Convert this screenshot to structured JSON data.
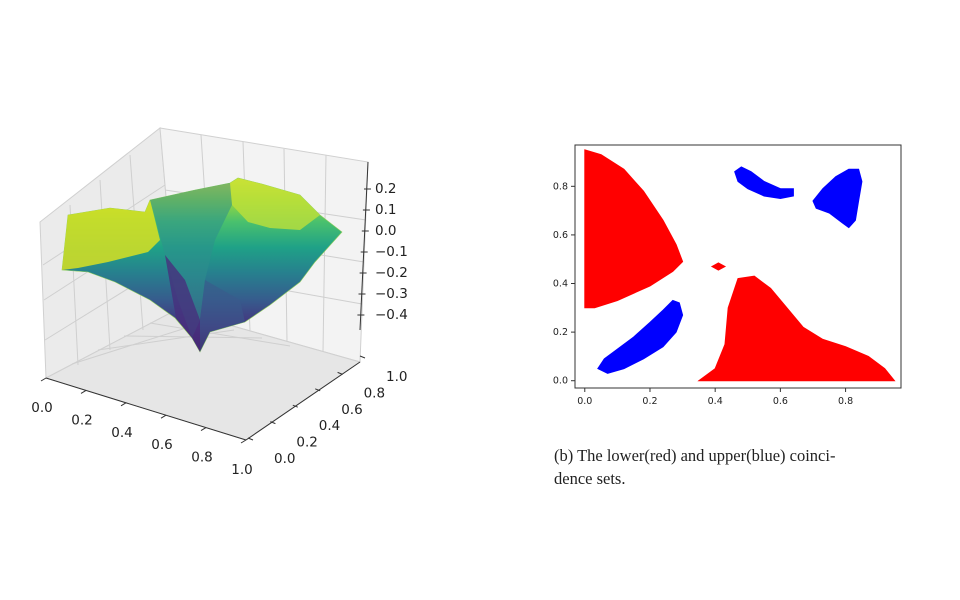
{
  "chart_data": [
    {
      "type": "surface3d",
      "colormap": "viridis",
      "x_ticks": [
        "0.0",
        "0.2",
        "0.4",
        "0.6",
        "0.8",
        "1.0"
      ],
      "y_ticks": [
        "0.0",
        "0.2",
        "0.4",
        "0.6",
        "0.8",
        "1.0"
      ],
      "z_ticks": [
        "0.2",
        "0.1",
        "0.0",
        "−0.1",
        "−0.2",
        "−0.3",
        "−0.4"
      ],
      "xlim": [
        0,
        1
      ],
      "ylim": [
        0,
        1
      ],
      "zlim": [
        -0.45,
        0.25
      ],
      "grid": true
    },
    {
      "type": "region_map",
      "x_ticks": [
        "0.0",
        "0.2",
        "0.4",
        "0.6",
        "0.8"
      ],
      "y_ticks": [
        "0.0",
        "0.2",
        "0.4",
        "0.6",
        "0.8"
      ],
      "xlim": [
        -0.03,
        0.97
      ],
      "ylim": [
        -0.03,
        0.97
      ],
      "regions": [
        {
          "set": "lower",
          "color": "#ff0000",
          "points": [
            [
              0.0,
              0.95
            ],
            [
              0.05,
              0.93
            ],
            [
              0.12,
              0.87
            ],
            [
              0.18,
              0.78
            ],
            [
              0.24,
              0.66
            ],
            [
              0.28,
              0.56
            ],
            [
              0.3,
              0.49
            ],
            [
              0.27,
              0.45
            ],
            [
              0.2,
              0.39
            ],
            [
              0.1,
              0.33
            ],
            [
              0.03,
              0.3
            ],
            [
              0.0,
              0.3
            ]
          ]
        },
        {
          "set": "lower",
          "color": "#ff0000",
          "points": [
            [
              0.35,
              0.0
            ],
            [
              0.4,
              0.05
            ],
            [
              0.43,
              0.15
            ],
            [
              0.44,
              0.3
            ],
            [
              0.47,
              0.42
            ],
            [
              0.52,
              0.43
            ],
            [
              0.57,
              0.38
            ],
            [
              0.62,
              0.3
            ],
            [
              0.67,
              0.22
            ],
            [
              0.73,
              0.17
            ],
            [
              0.8,
              0.14
            ],
            [
              0.87,
              0.1
            ],
            [
              0.92,
              0.05
            ],
            [
              0.95,
              0.0
            ]
          ]
        },
        {
          "set": "lower",
          "color": "#ff0000",
          "points": [
            [
              0.39,
              0.47
            ],
            [
              0.41,
              0.485
            ],
            [
              0.43,
              0.47
            ],
            [
              0.41,
              0.455
            ]
          ]
        },
        {
          "set": "upper",
          "color": "#0000ff",
          "points": [
            [
              0.04,
              0.05
            ],
            [
              0.06,
              0.09
            ],
            [
              0.1,
              0.13
            ],
            [
              0.15,
              0.18
            ],
            [
              0.2,
              0.24
            ],
            [
              0.24,
              0.29
            ],
            [
              0.27,
              0.33
            ],
            [
              0.29,
              0.32
            ],
            [
              0.3,
              0.27
            ],
            [
              0.28,
              0.2
            ],
            [
              0.24,
              0.14
            ],
            [
              0.18,
              0.09
            ],
            [
              0.12,
              0.05
            ],
            [
              0.07,
              0.03
            ]
          ]
        },
        {
          "set": "upper",
          "color": "#0000ff",
          "points": [
            [
              0.46,
              0.86
            ],
            [
              0.48,
              0.88
            ],
            [
              0.51,
              0.86
            ],
            [
              0.55,
              0.82
            ],
            [
              0.6,
              0.79
            ],
            [
              0.64,
              0.79
            ],
            [
              0.64,
              0.76
            ],
            [
              0.6,
              0.75
            ],
            [
              0.55,
              0.76
            ],
            [
              0.5,
              0.79
            ],
            [
              0.47,
              0.82
            ]
          ]
        },
        {
          "set": "upper",
          "color": "#0000ff",
          "points": [
            [
              0.7,
              0.74
            ],
            [
              0.73,
              0.79
            ],
            [
              0.77,
              0.84
            ],
            [
              0.81,
              0.87
            ],
            [
              0.84,
              0.87
            ],
            [
              0.85,
              0.82
            ],
            [
              0.84,
              0.74
            ],
            [
              0.83,
              0.66
            ],
            [
              0.81,
              0.63
            ],
            [
              0.79,
              0.65
            ],
            [
              0.75,
              0.69
            ],
            [
              0.71,
              0.71
            ]
          ]
        }
      ]
    }
  ],
  "caption": {
    "line1": "(b) The lower(red) and upper(blue) coinci-",
    "line2": "dence sets."
  }
}
